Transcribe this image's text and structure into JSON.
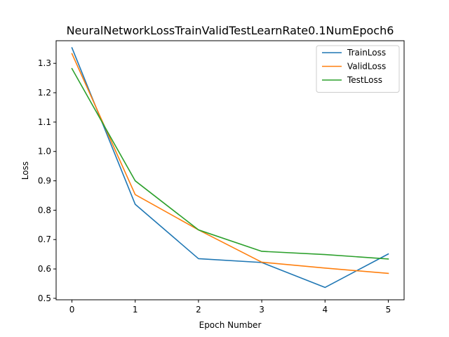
{
  "chart_data": {
    "type": "line",
    "title": "NeuralNetworkLossTrainValidTestLearnRate0.1NumEpoch6",
    "xlabel": "Epoch Number",
    "ylabel": "Loss",
    "x": [
      0,
      1,
      2,
      3,
      4,
      5
    ],
    "xlim": [
      -0.25,
      5.25
    ],
    "ylim": [
      0.495,
      1.377
    ],
    "xticks": [
      0,
      1,
      2,
      3,
      4,
      5
    ],
    "xtick_labels": [
      "0",
      "1",
      "2",
      "3",
      "4",
      "5"
    ],
    "yticks": [
      0.5,
      0.6,
      0.7,
      0.8,
      0.9,
      1.0,
      1.1,
      1.2,
      1.3
    ],
    "ytick_labels": [
      "0.5",
      "0.6",
      "0.7",
      "0.8",
      "0.9",
      "1.0",
      "1.1",
      "1.2",
      "1.3"
    ],
    "grid": false,
    "legend_position": "top-right",
    "series": [
      {
        "name": "TrainLoss",
        "color": "#1f77b4",
        "values": [
          1.353,
          0.82,
          0.635,
          0.622,
          0.537,
          0.651
        ]
      },
      {
        "name": "ValidLoss",
        "color": "#ff7f0e",
        "values": [
          1.333,
          0.853,
          0.733,
          0.623,
          0.603,
          0.585
        ]
      },
      {
        "name": "TestLoss",
        "color": "#2ca02c",
        "values": [
          1.282,
          0.9,
          0.733,
          0.66,
          0.649,
          0.634
        ]
      }
    ]
  }
}
